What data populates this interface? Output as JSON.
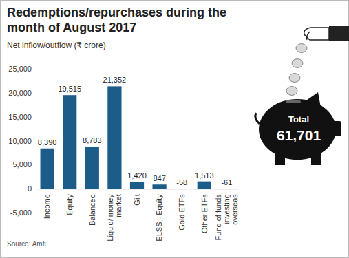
{
  "chart_data": {
    "type": "bar",
    "title": "Redemptions/repurchases during the month of August 2017",
    "subtitle": "Net inflow/outflow (₹ crore)",
    "categories": [
      "Income",
      "Equity",
      "Balanced",
      "Liquid/ money market",
      "Gilt",
      "ELSS - Equity",
      "Gold ETFs",
      "Other ETFs",
      "Fund of funds investing overseas"
    ],
    "values": [
      8390,
      19515,
      8783,
      21352,
      1420,
      847,
      -58,
      1513,
      -61
    ],
    "value_labels": [
      "8,390",
      "19,515",
      "8,783",
      "21,352",
      "1,420",
      "847",
      "-58",
      "1,513",
      "-61"
    ],
    "color": "#1b5c88",
    "ylim": [
      -5000,
      25000
    ],
    "yticks": [
      {
        "value": -5000,
        "label": "-5,000"
      },
      0,
      {
        "value": 5000,
        "label": "5,000"
      },
      {
        "value": 10000,
        "label": "10,000"
      },
      {
        "value": 15000,
        "label": "15,000"
      },
      {
        "value": 20000,
        "label": "20,000"
      },
      {
        "value": 25000,
        "label": "25,000"
      }
    ],
    "grid": false,
    "data_labels": true,
    "annotations": [
      "Total",
      "61,701"
    ],
    "source": "Source: Amfi"
  }
}
